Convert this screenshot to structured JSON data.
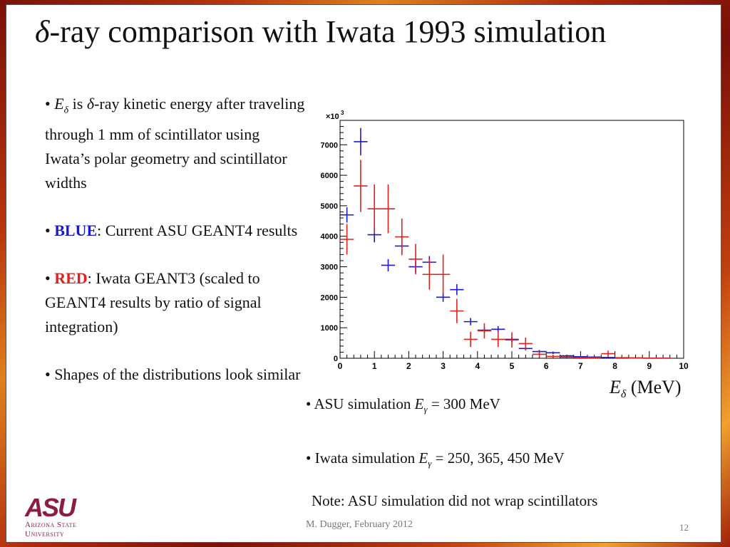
{
  "title": {
    "symbol": "δ",
    "text": "-ray comparison with Iwata 1993 simulation"
  },
  "bullets": {
    "b1": {
      "lead": "• ",
      "e": "E",
      "sub": "δ",
      "t1": " is ",
      "delta": "δ",
      "t2": "-ray kinetic energy after traveling through 1 mm of scintillator using Iwata’s polar geometry and scintillator widths"
    },
    "b2": {
      "lead": "• ",
      "key": "BLUE",
      "rest": ": Current ASU GEANT4 results"
    },
    "b3": {
      "lead": "• ",
      "key": "RED",
      "rest": ": Iwata GEANT3 (scaled to GEANT4 results by ratio of signal  integration)"
    },
    "b4": {
      "text": "• Shapes of the distributions look similar"
    }
  },
  "axis_unit": {
    "e": "E",
    "sub": "δ",
    "unit": " (MeV)"
  },
  "notes": {
    "n1": {
      "pre": "• ASU simulation ",
      "e": "E",
      "sub": "γ",
      "post": " = 300 MeV"
    },
    "n2": {
      "pre": "• Iwata simulation ",
      "e": "E",
      "sub": "γ",
      "post": " = 250, 365, 450 MeV"
    }
  },
  "note": "Note: ASU simulation did not wrap scintillators",
  "footer": "M. Dugger, February 2012",
  "page_number": "12",
  "logo": {
    "mark": "ASU",
    "line1": "Arizona State",
    "line2": "University"
  },
  "colors": {
    "blue_series": "#1a1acc",
    "red_series": "#e02020",
    "asu_maroon": "#8c1d40"
  },
  "chart_data": {
    "type": "scatter",
    "multiplier_label": "×10",
    "multiplier_exp": "3",
    "xlim": [
      0,
      10
    ],
    "ylim": [
      0,
      7800
    ],
    "x_ticks": [
      "0",
      "1",
      "2",
      "3",
      "4",
      "5",
      "6",
      "7",
      "8",
      "9",
      "10"
    ],
    "y_ticks": [
      "0",
      "1000",
      "2000",
      "3000",
      "4000",
      "5000",
      "6000",
      "7000"
    ],
    "y_tick_values": [
      0,
      1000,
      2000,
      3000,
      4000,
      5000,
      6000,
      7000
    ],
    "series": [
      {
        "color": "#1a1acc",
        "x": [
          0.2,
          0.6,
          1.0,
          1.4,
          1.8,
          2.2,
          2.6,
          3.0,
          3.4,
          3.8,
          4.2,
          4.6,
          5.0,
          5.4,
          5.8,
          6.2,
          6.6,
          7.0,
          7.4,
          7.8,
          8.2,
          8.6,
          9.0,
          9.4
        ],
        "y": [
          4700,
          7100,
          4050,
          3050,
          3680,
          3000,
          3150,
          2000,
          2250,
          1200,
          920,
          950,
          620,
          320,
          220,
          180,
          80,
          50,
          40,
          25,
          15,
          10,
          5,
          3
        ],
        "err": [
          250,
          450,
          250,
          200,
          250,
          200,
          200,
          150,
          180,
          120,
          100,
          100,
          80,
          60,
          50,
          40,
          30,
          20,
          20,
          10,
          10,
          5,
          5,
          3
        ]
      },
      {
        "color": "#e02020",
        "x": [
          0.2,
          0.6,
          1.0,
          1.4,
          1.8,
          2.2,
          2.6,
          3.0,
          3.4,
          3.8,
          4.2,
          4.6,
          5.0,
          5.4,
          5.8,
          6.2,
          6.6,
          7.0,
          7.4,
          7.8,
          8.2,
          8.6,
          9.0,
          9.4
        ],
        "y": [
          3900,
          5650,
          4900,
          4900,
          3980,
          3250,
          2750,
          2750,
          1550,
          620,
          900,
          620,
          600,
          480,
          130,
          60,
          40,
          20,
          15,
          150,
          20,
          10,
          5,
          3
        ],
        "err": [
          500,
          850,
          800,
          800,
          600,
          500,
          500,
          650,
          400,
          250,
          250,
          250,
          250,
          200,
          100,
          50,
          30,
          20,
          15,
          100,
          15,
          10,
          5,
          3
        ]
      }
    ]
  }
}
